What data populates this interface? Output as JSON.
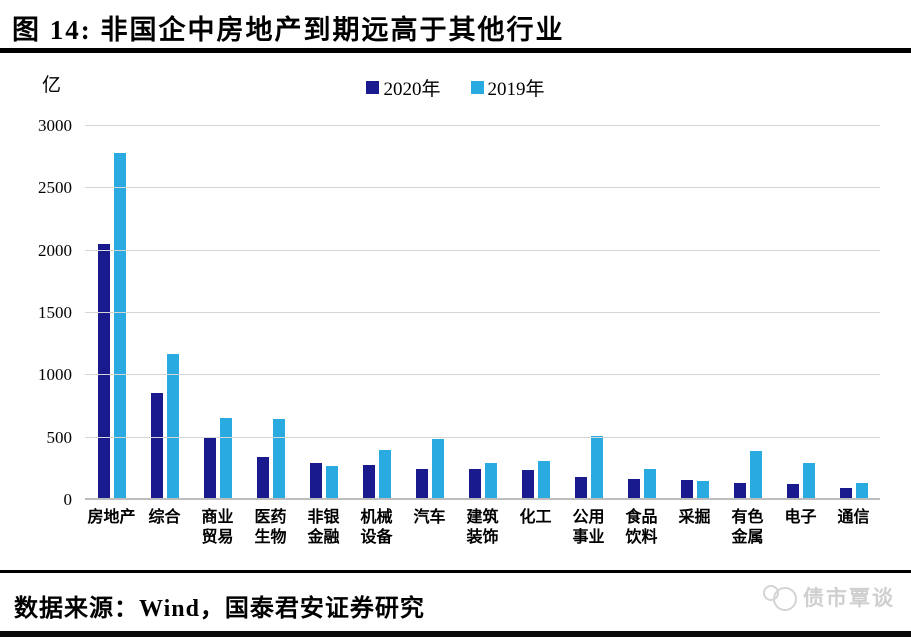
{
  "header": {
    "title": "图  14:  非国企中房地产到期远高于其他行业"
  },
  "chart_data": {
    "type": "bar",
    "title": "非国企中房地产到期远高于其他行业",
    "unit_label": "亿",
    "categories": [
      "房地产",
      "综合",
      "商业贸易",
      "医药生物",
      "非银金融",
      "机械设备",
      "汽车",
      "建筑装饰",
      "化工",
      "公用事业",
      "食品饮料",
      "采掘",
      "有色金属",
      "电子",
      "通信"
    ],
    "category_lines": [
      [
        "房地产"
      ],
      [
        "综合"
      ],
      [
        "商业",
        "贸易"
      ],
      [
        "医药",
        "生物"
      ],
      [
        "非银",
        "金融"
      ],
      [
        "机械",
        "设备"
      ],
      [
        "汽车"
      ],
      [
        "建筑",
        "装饰"
      ],
      [
        "化工"
      ],
      [
        "公用",
        "事业"
      ],
      [
        "食品",
        "饮料"
      ],
      [
        "采掘"
      ],
      [
        "有色",
        "金属"
      ],
      [
        "电子"
      ],
      [
        "通信"
      ]
    ],
    "series": [
      {
        "name": "2020年",
        "color": "#1A1A8F",
        "values": [
          2050,
          860,
          500,
          345,
          300,
          280,
          250,
          250,
          240,
          185,
          165,
          160,
          140,
          125,
          100
        ]
      },
      {
        "name": "2019年",
        "color": "#29ABE2",
        "values": [
          2780,
          1170,
          660,
          650,
          270,
          400,
          490,
          300,
          310,
          515,
          250,
          150,
          390,
          300,
          140
        ]
      }
    ],
    "xlabel": "",
    "ylabel": "亿",
    "ylim": [
      0,
      3000
    ],
    "yticks": [
      0,
      500,
      1000,
      1500,
      2000,
      2500,
      3000
    ],
    "grid": true,
    "legend_position": "top-center",
    "gridline_color": "#d6d6d6"
  },
  "footer": {
    "source": "数据来源：Wind，国泰君安证券研究",
    "watermark": "债市覃谈"
  }
}
